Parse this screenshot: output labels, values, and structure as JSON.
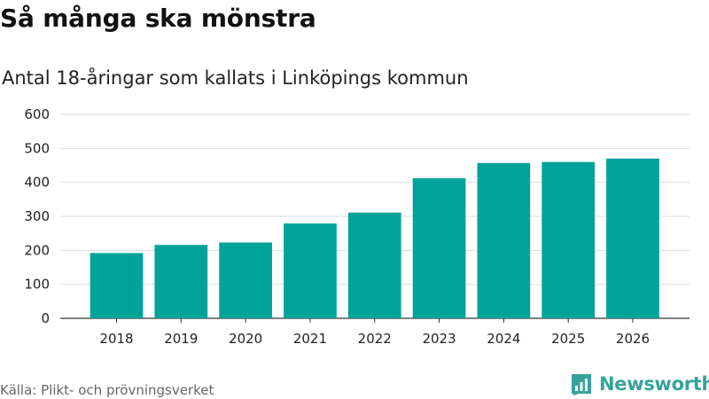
{
  "title": "Så många ska mönstra",
  "subtitle": "Antal 18-åringar som kallats i Linköpings kommun",
  "source": "Källa: Plikt- och prövningsverket",
  "brand": {
    "name": "Newsworthy",
    "icon": "newsworthy-logo-icon",
    "color": "#35a39b"
  },
  "chart_data": {
    "type": "bar",
    "title": "Så många ska mönstra",
    "subtitle": "Antal 18-åringar som kallats i Linköpings kommun",
    "xlabel": "",
    "ylabel": "",
    "categories": [
      "2018",
      "2019",
      "2020",
      "2021",
      "2022",
      "2023",
      "2024",
      "2025",
      "2026"
    ],
    "values": [
      192,
      216,
      223,
      279,
      311,
      412,
      457,
      460,
      470
    ],
    "ylim": [
      0,
      600
    ],
    "yticks": [
      0,
      100,
      200,
      300,
      400,
      500,
      600
    ],
    "grid": true,
    "legend": "none",
    "bar_color": "#00a39a"
  }
}
